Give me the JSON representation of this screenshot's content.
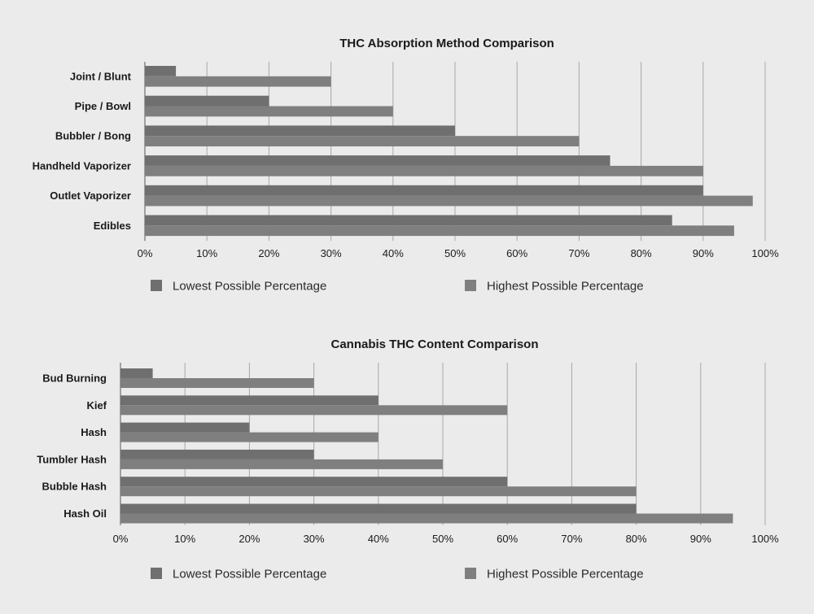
{
  "chart_data": [
    {
      "type": "bar",
      "orientation": "horizontal",
      "title": "THC Absorption Method Comparison",
      "categories": [
        "Joint / Blunt",
        "Pipe / Bowl",
        "Bubbler / Bong",
        "Handheld Vaporizer",
        "Outlet Vaporizer",
        "Edibles"
      ],
      "series": [
        {
          "name": "Lowest Possible Percentage",
          "values": [
            5,
            20,
            50,
            75,
            90,
            85
          ]
        },
        {
          "name": "Highest Possible Percentage",
          "values": [
            30,
            40,
            70,
            90,
            98,
            95
          ]
        }
      ],
      "xlim": [
        0,
        100
      ],
      "xticks": [
        "0%",
        "10%",
        "20%",
        "30%",
        "40%",
        "50%",
        "60%",
        "70%",
        "80%",
        "90%",
        "100%"
      ],
      "grid": true,
      "legend": "bottom",
      "colors": [
        "#6f6f6f",
        "#7f7f7f"
      ]
    },
    {
      "type": "bar",
      "orientation": "horizontal",
      "title": "Cannabis THC Content Comparison",
      "categories": [
        "Bud Burning",
        "Kief",
        "Hash",
        "Tumbler Hash",
        "Bubble Hash",
        "Hash Oil"
      ],
      "series": [
        {
          "name": "Lowest Possible Percentage",
          "values": [
            5,
            40,
            20,
            30,
            60,
            80
          ]
        },
        {
          "name": "Highest Possible Percentage",
          "values": [
            30,
            60,
            40,
            50,
            80,
            95
          ]
        }
      ],
      "xlim": [
        0,
        100
      ],
      "xticks": [
        "0%",
        "10%",
        "20%",
        "30%",
        "40%",
        "50%",
        "60%",
        "70%",
        "80%",
        "90%",
        "100%"
      ],
      "grid": true,
      "legend": "bottom",
      "colors": [
        "#6f6f6f",
        "#7f7f7f"
      ]
    }
  ]
}
